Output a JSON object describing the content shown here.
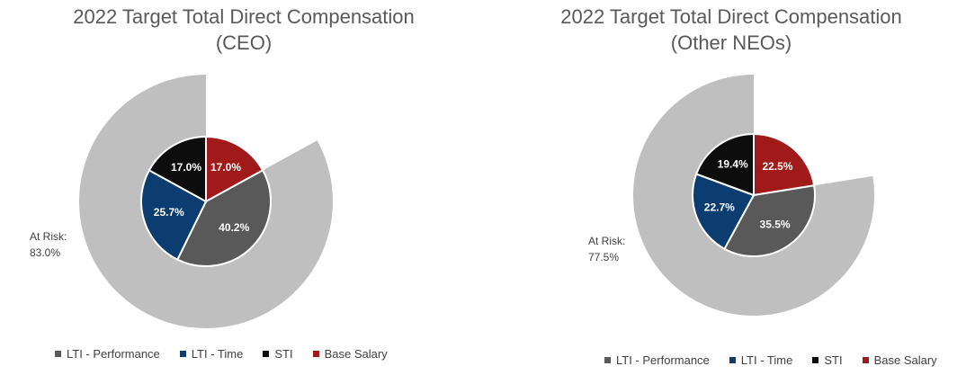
{
  "chart_data": [
    {
      "type": "pie",
      "title": "2022 Target Total Direct Compensation",
      "subtitle": "(CEO)",
      "slices": [
        {
          "name": "Base Salary",
          "value": 17.0,
          "label": "17.0%",
          "color": "#a11a1a"
        },
        {
          "name": "LTI - Performance",
          "value": 40.2,
          "label": "40.2%",
          "color": "#595959"
        },
        {
          "name": "LTI - Time",
          "value": 25.7,
          "label": "25.7%",
          "color": "#0b3d70"
        },
        {
          "name": "STI",
          "value": 17.0,
          "label": "17.0%",
          "color": "#0d0d0d"
        }
      ],
      "at_risk": {
        "label": "At Risk:",
        "value": 83.0,
        "value_label": "83.0%",
        "color": "#bfbfbf"
      },
      "legend": [
        "LTI - Performance",
        "LTI - Time",
        "STI",
        "Base Salary"
      ],
      "legend_position": "bottom"
    },
    {
      "type": "pie",
      "title": "2022 Target Total Direct Compensation",
      "subtitle": "(Other NEOs)",
      "slices": [
        {
          "name": "Base Salary",
          "value": 22.5,
          "label": "22.5%",
          "color": "#a11a1a"
        },
        {
          "name": "LTI - Performance",
          "value": 35.5,
          "label": "35.5%",
          "color": "#595959"
        },
        {
          "name": "LTI - Time",
          "value": 22.7,
          "label": "22.7%",
          "color": "#0b3d70"
        },
        {
          "name": "STI",
          "value": 19.4,
          "label": "19.4%",
          "color": "#0d0d0d"
        }
      ],
      "at_risk": {
        "label": "At Risk:",
        "value": 77.5,
        "value_label": "77.5%",
        "color": "#bfbfbf"
      },
      "legend": [
        "LTI - Performance",
        "LTI - Time",
        "STI",
        "Base Salary"
      ],
      "legend_position": "bottom"
    }
  ]
}
